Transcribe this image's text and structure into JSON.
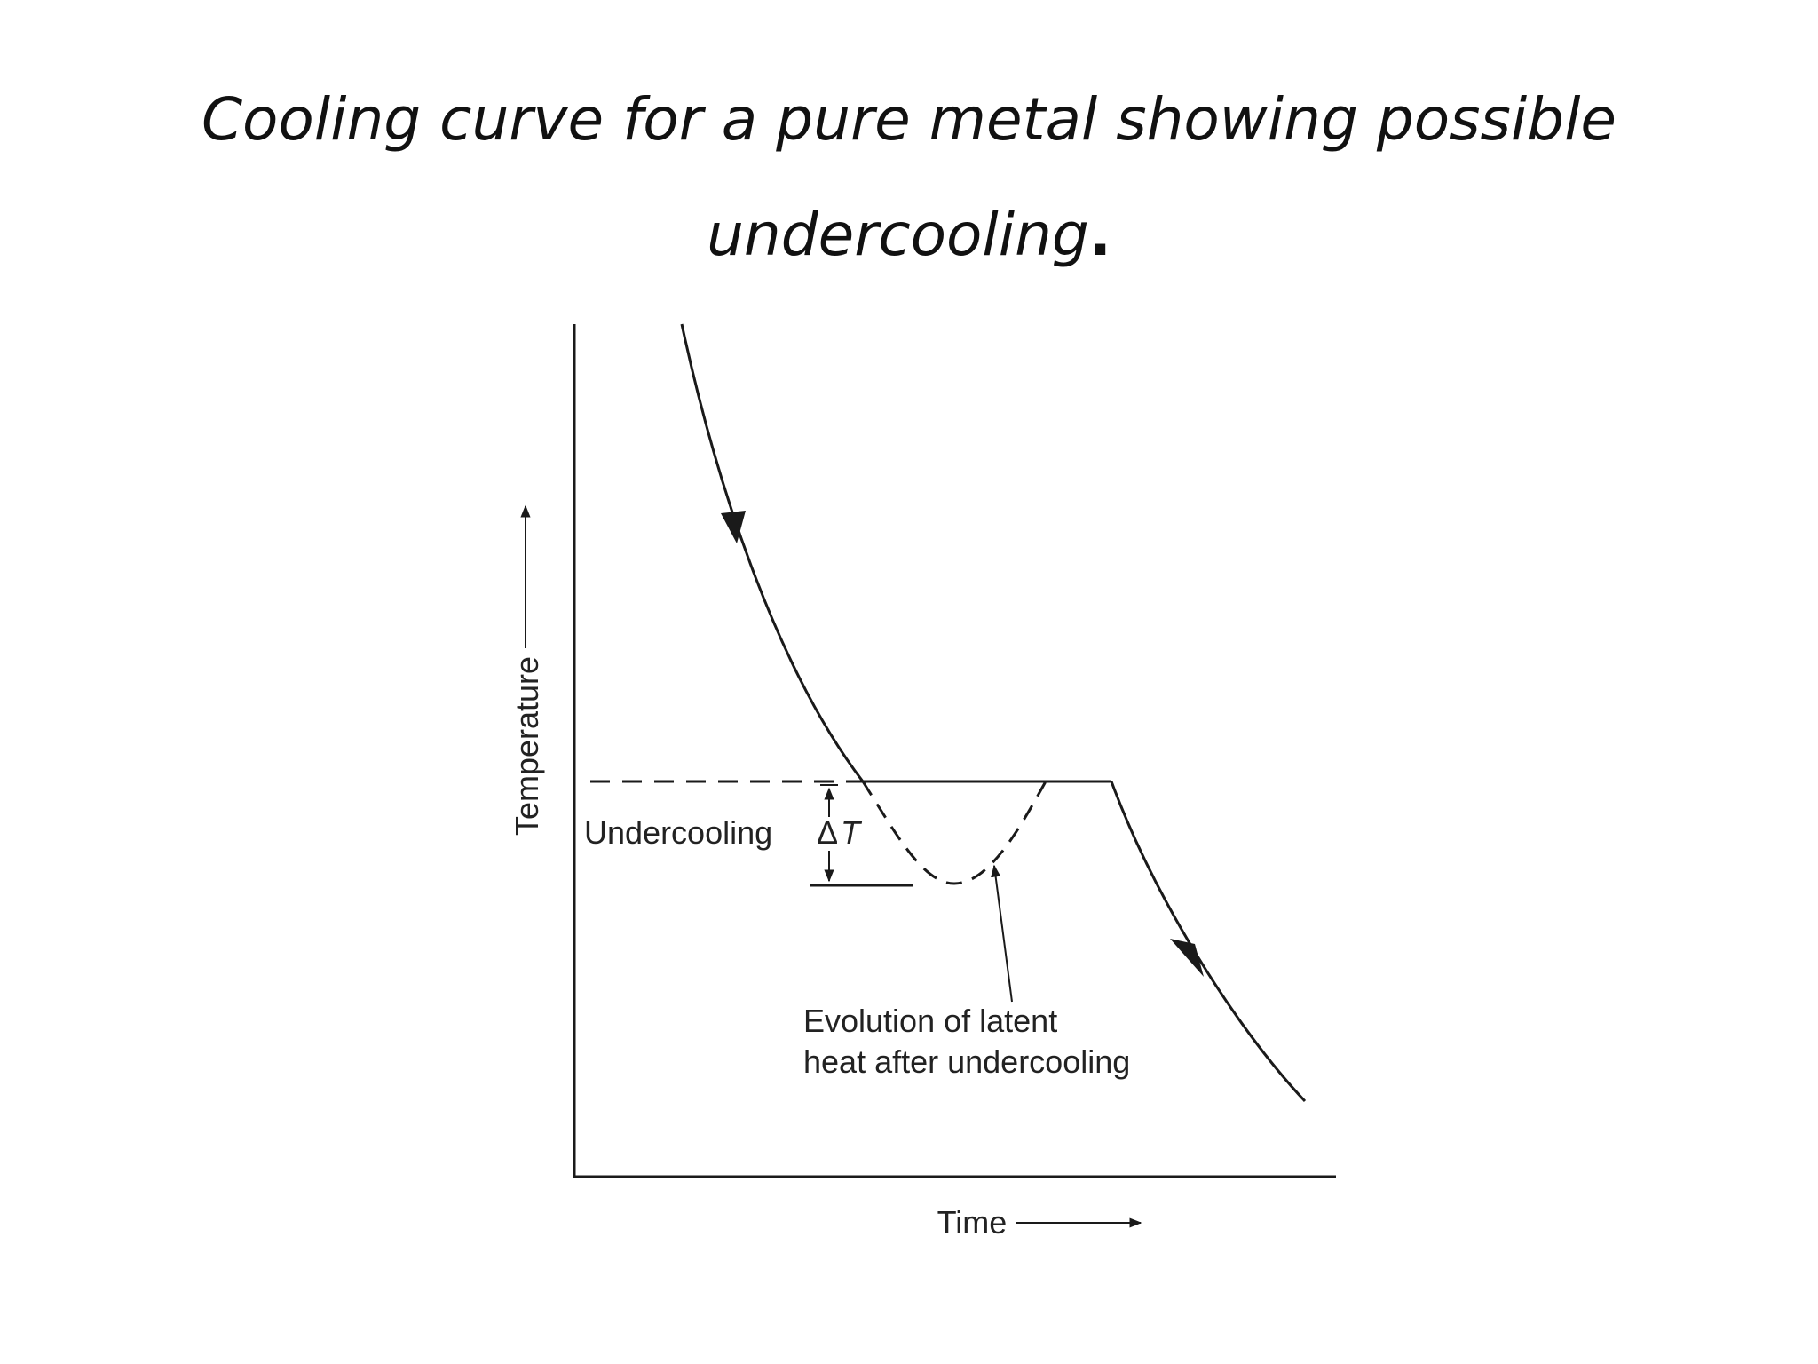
{
  "title": {
    "line1": "Cooling curve for a pure metal showing possible",
    "line2": "undercooling",
    "line2_end": "."
  },
  "diagram": {
    "y_axis_label": "Temperature",
    "x_axis_label": "Time",
    "undercooling_label": "Undercooling",
    "delta_t_symbol": "Δ",
    "delta_t_letter": "T",
    "annotation_line1": "Evolution of latent",
    "annotation_line2": "heat after undercooling"
  },
  "colors": {
    "ink": "#1a1a1a",
    "background": "#ffffff"
  }
}
